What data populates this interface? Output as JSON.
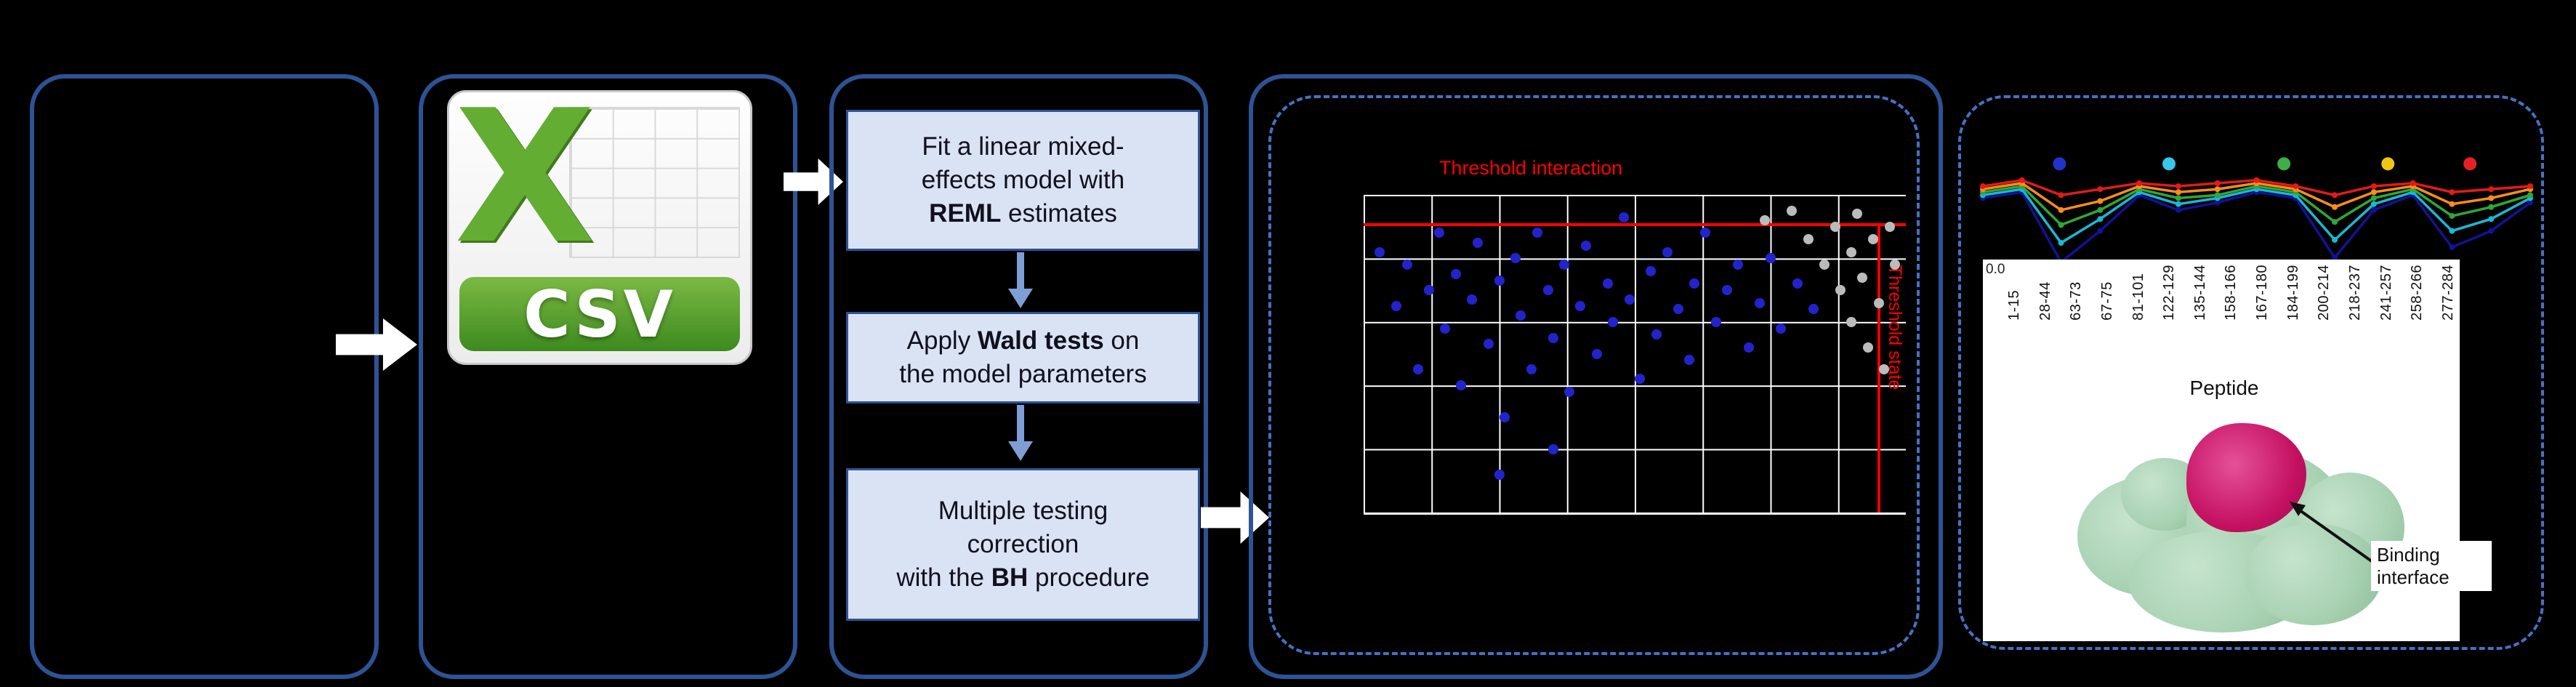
{
  "colors": {
    "bg": "#000000",
    "box_border": "#2e5395",
    "dashed_border": "#4472c4",
    "step_fill": "#dae3f3",
    "step_border": "#2e5395",
    "step_text": "#10101e",
    "connector_blue": "#7f9ed6",
    "white_arrow": "#ffffff",
    "threshold_red": "#ff0000",
    "grid_line": "#ffffff",
    "csv_green": "#64ad33",
    "csv_banner_top": "#7cb944",
    "csv_banner_bottom": "#3c8a1e",
    "protein_surface": "#a9d2b3",
    "protein_interface": "#c51162"
  },
  "csv_card": {
    "big_letter": "X",
    "banner_label": "CSV"
  },
  "steps": [
    {
      "segments": [
        {
          "t": "Fit a linear mixed-"
        },
        {
          "br": true
        },
        {
          "t": "effects model with"
        },
        {
          "br": true
        },
        {
          "t": "REML",
          "b": true
        },
        {
          "t": " estimates"
        }
      ]
    },
    {
      "segments": [
        {
          "t": "Apply "
        },
        {
          "t": "Wald tests",
          "b": true
        },
        {
          "t": " on"
        },
        {
          "br": true
        },
        {
          "t": "the model parameters"
        }
      ]
    },
    {
      "segments": [
        {
          "t": "Multiple testing"
        },
        {
          "br": true
        },
        {
          "t": "correction"
        },
        {
          "br": true
        },
        {
          "t": "with the "
        },
        {
          "t": "BH",
          "b": true
        },
        {
          "t": " procedure"
        }
      ]
    }
  ],
  "structure": {
    "binding_label": "Binding interface"
  },
  "chart_data": [
    {
      "id": "pvalue_scatter",
      "type": "scatter",
      "threshold_labels": {
        "horizontal": "Threshold interaction",
        "vertical": "Threshold state"
      },
      "threshold_lines": {
        "h_y_frac": 0.09,
        "v_x_frac": 0.948
      },
      "grid": {
        "cols": 8,
        "rows": 5
      },
      "series": [
        {
          "name": "blue_points",
          "color": "#2323cc",
          "points_frac": [
            [
              0.03,
              0.18
            ],
            [
              0.06,
              0.35
            ],
            [
              0.08,
              0.22
            ],
            [
              0.1,
              0.55
            ],
            [
              0.12,
              0.3
            ],
            [
              0.14,
              0.12
            ],
            [
              0.15,
              0.42
            ],
            [
              0.17,
              0.25
            ],
            [
              0.18,
              0.6
            ],
            [
              0.2,
              0.33
            ],
            [
              0.21,
              0.15
            ],
            [
              0.23,
              0.47
            ],
            [
              0.25,
              0.27
            ],
            [
              0.26,
              0.7
            ],
            [
              0.28,
              0.2
            ],
            [
              0.29,
              0.38
            ],
            [
              0.31,
              0.55
            ],
            [
              0.32,
              0.12
            ],
            [
              0.34,
              0.3
            ],
            [
              0.35,
              0.45
            ],
            [
              0.37,
              0.22
            ],
            [
              0.38,
              0.62
            ],
            [
              0.4,
              0.35
            ],
            [
              0.41,
              0.16
            ],
            [
              0.43,
              0.5
            ],
            [
              0.45,
              0.28
            ],
            [
              0.46,
              0.4
            ],
            [
              0.48,
              0.07
            ],
            [
              0.49,
              0.33
            ],
            [
              0.51,
              0.58
            ],
            [
              0.53,
              0.24
            ],
            [
              0.54,
              0.44
            ],
            [
              0.56,
              0.18
            ],
            [
              0.58,
              0.36
            ],
            [
              0.6,
              0.52
            ],
            [
              0.61,
              0.28
            ],
            [
              0.63,
              0.12
            ],
            [
              0.65,
              0.4
            ],
            [
              0.67,
              0.3
            ],
            [
              0.69,
              0.22
            ],
            [
              0.71,
              0.48
            ],
            [
              0.73,
              0.34
            ],
            [
              0.75,
              0.2
            ],
            [
              0.77,
              0.42
            ],
            [
              0.8,
              0.28
            ],
            [
              0.83,
              0.36
            ],
            [
              0.25,
              0.88
            ],
            [
              0.35,
              0.8
            ]
          ]
        },
        {
          "name": "gray_points",
          "color": "#bbbbbb",
          "points_frac": [
            [
              0.74,
              0.08
            ],
            [
              0.79,
              0.05
            ],
            [
              0.82,
              0.14
            ],
            [
              0.85,
              0.22
            ],
            [
              0.87,
              0.1
            ],
            [
              0.88,
              0.3
            ],
            [
              0.9,
              0.18
            ],
            [
              0.9,
              0.4
            ],
            [
              0.91,
              0.06
            ],
            [
              0.92,
              0.26
            ],
            [
              0.93,
              0.48
            ],
            [
              0.94,
              0.14
            ],
            [
              0.95,
              0.34
            ],
            [
              0.96,
              0.55
            ],
            [
              0.97,
              0.1
            ],
            [
              0.98,
              0.22
            ]
          ]
        }
      ]
    },
    {
      "id": "uptake_profile",
      "type": "line",
      "xlabel": "Peptide",
      "y_axis_tick": "0.0",
      "x_categories": [
        "1-15",
        "28-44",
        "63-73",
        "67-75",
        "81-101",
        "122-129",
        "135-144",
        "158-166",
        "167-180",
        "184-199",
        "200-214",
        "218-237",
        "241-257",
        "258-266",
        "277-284"
      ],
      "legend_markers_y_frac": 0.27,
      "legend_markers": [
        {
          "color": "#2233cc",
          "x_frac": 0.14
        },
        {
          "color": "#35c8e8",
          "x_frac": 0.34
        },
        {
          "color": "#3fae47",
          "x_frac": 0.55
        },
        {
          "color": "#f2c514",
          "x_frac": 0.74
        },
        {
          "color": "#e52222",
          "x_frac": 0.89
        }
      ],
      "series": [
        {
          "name": "navy",
          "color": "#121296",
          "values_frac": [
            0.5,
            0.46,
            0.93,
            0.72,
            0.48,
            0.58,
            0.53,
            0.46,
            0.5,
            0.9,
            0.58,
            0.48,
            0.83,
            0.72,
            0.53
          ]
        },
        {
          "name": "cyan",
          "color": "#19b8d6",
          "values_frac": [
            0.48,
            0.44,
            0.8,
            0.64,
            0.46,
            0.54,
            0.5,
            0.44,
            0.48,
            0.78,
            0.54,
            0.46,
            0.72,
            0.64,
            0.5
          ]
        },
        {
          "name": "green",
          "color": "#2ea836",
          "values_frac": [
            0.46,
            0.42,
            0.68,
            0.58,
            0.44,
            0.5,
            0.48,
            0.42,
            0.46,
            0.66,
            0.5,
            0.44,
            0.62,
            0.56,
            0.48
          ]
        },
        {
          "name": "orange",
          "color": "#ff8c1a",
          "values_frac": [
            0.44,
            0.4,
            0.58,
            0.52,
            0.42,
            0.46,
            0.44,
            0.4,
            0.44,
            0.56,
            0.46,
            0.42,
            0.54,
            0.5,
            0.44
          ]
        },
        {
          "name": "red",
          "color": "#e51919",
          "values_frac": [
            0.42,
            0.38,
            0.48,
            0.44,
            0.4,
            0.42,
            0.4,
            0.38,
            0.42,
            0.48,
            0.42,
            0.4,
            0.46,
            0.44,
            0.42
          ]
        }
      ]
    }
  ]
}
